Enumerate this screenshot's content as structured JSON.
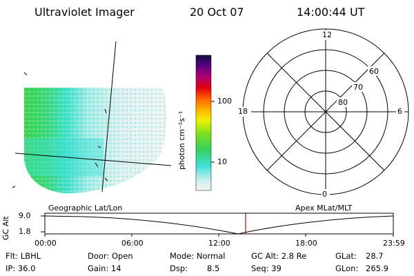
{
  "header": {
    "instrument": "Ultraviolet Imager",
    "date": "20 Oct 07",
    "time": "14:00:44 UT"
  },
  "colorbar": {
    "unit_label": "photon cm⁻²s⁻¹",
    "ticks": [
      "100",
      "10"
    ],
    "scale": "log"
  },
  "polar_plot": {
    "mlt_labels": [
      "12",
      "18",
      "6",
      "0"
    ],
    "lat_labels": [
      "60",
      "70",
      "80"
    ]
  },
  "timeline": {
    "left_label": "Geographic Lat/Lon",
    "right_label": "Apex MLat/MLT",
    "y_axis_label": "GC Alt",
    "y_ticks": [
      "9.0",
      "1.8"
    ],
    "x_ticks": [
      "00:00",
      "06:00",
      "12:00",
      "18:00",
      "23:59"
    ],
    "marker_time": "14:00:44",
    "marker_color": "#cc0000"
  },
  "info": {
    "filter": "Flt: LBHL",
    "ip": "IP: 36.0",
    "door": "Door: Open",
    "gain": "Gain: 14",
    "mode": "Mode: Normal",
    "dsp_label": "Dsp:",
    "dsp_value": "8.5",
    "gc_alt": "GC Alt: 2.8 Re",
    "seq": "Seq: 39",
    "glat_label": "GLat:",
    "glat_value": "28.7",
    "glon_label": "GLon:",
    "glon_value": "265.9"
  },
  "colors": {
    "ink": "#000000",
    "marker": "#cc0000"
  }
}
